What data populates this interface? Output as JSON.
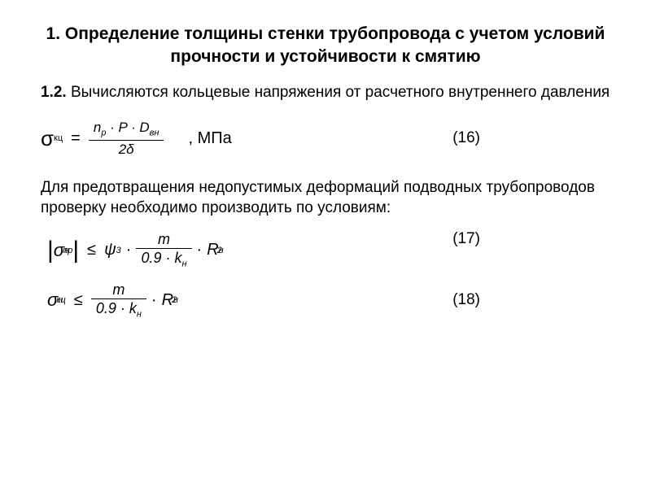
{
  "colors": {
    "background": "#ffffff",
    "text": "#000000"
  },
  "typography": {
    "title_fontsize": 21,
    "body_fontsize": 19,
    "formula_fontsize": 20,
    "subscript_fontsize": 11
  },
  "title": "1. Определение толщины стенки трубопровода с учетом условий прочности и устойчивости к смятию",
  "section": {
    "num": "1.2.",
    "text": " Вычисляются кольцевые напряжения от расчетного внутреннего давления"
  },
  "formula16": {
    "lhs_sigma": "σ",
    "lhs_sub": "кц",
    "eq": "=",
    "numerator": "n",
    "numerator_sub": "p",
    "numerator_rest": " · P · D",
    "numerator_sub2": "вн",
    "denominator": "2δ",
    "unit": ", МПа",
    "eqnum": "(16)"
  },
  "body2": "Для предотвращения недопустимых деформаций подводных трубопроводов проверку необходимо производить по условиям:",
  "formula17": {
    "abs": "|",
    "sigma": "σ",
    "sup": "н",
    "sub": "пр",
    "leq": "≤",
    "psi": "ψ",
    "psi_sub": "3",
    "dot": "·",
    "frac_num": "m",
    "frac_den_a": "0.9 · k",
    "frac_den_sub": "н",
    "R": "R",
    "R_sup": "н",
    "R_sub": "2",
    "eqnum": "(17)"
  },
  "formula18": {
    "sigma": "σ",
    "sup": "н",
    "sub": "кц",
    "leq": "≤",
    "dot": "·",
    "frac_num": "m",
    "frac_den_a": "0.9 · k",
    "frac_den_sub": "н",
    "R": "R",
    "R_sup": "н",
    "R_sub": "2",
    "eqnum": "(18)"
  }
}
